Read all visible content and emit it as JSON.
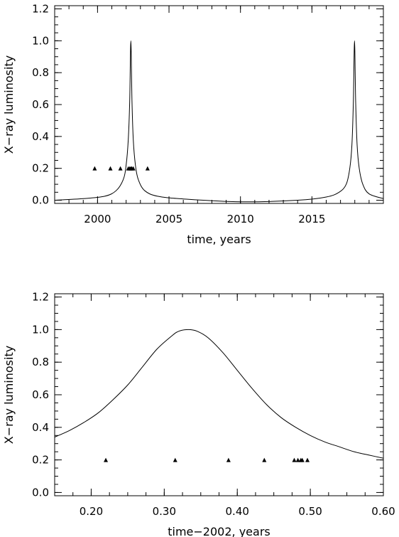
{
  "chart_data": [
    {
      "type": "line",
      "xlabel": "time, years",
      "ylabel": "X−ray luminosity",
      "xlim": [
        1997,
        2020
      ],
      "ylim": [
        -0.02,
        1.22
      ],
      "xticks": [
        2000,
        2005,
        2010,
        2015
      ],
      "xtick_labels": [
        "2000",
        "2005",
        "2010",
        "2015"
      ],
      "xtick_minor_step": 1,
      "yticks": [
        0.0,
        0.2,
        0.4,
        0.6,
        0.8,
        1.0,
        1.2
      ],
      "ytick_labels": [
        "0.0",
        "0.2",
        "0.4",
        "0.6",
        "0.8",
        "1.0",
        "1.2"
      ],
      "ytick_minor_step": 0.05,
      "grid": false,
      "series": [
        {
          "kind": "line",
          "x": [
            1997.0,
            1999.0,
            2000.5,
            2001.3,
            2001.8,
            2002.0,
            2002.15,
            2002.25,
            2002.33,
            2002.41,
            2002.5,
            2002.65,
            2002.85,
            2003.3,
            2004.2,
            2006.0,
            2010.0,
            2014.0,
            2016.0,
            2016.9,
            2017.4,
            2017.65,
            2017.8,
            2017.9,
            2017.98,
            2018.06,
            2018.16,
            2018.31,
            2018.56,
            2019.0,
            2020.0
          ],
          "y": [
            0.0,
            0.01,
            0.025,
            0.06,
            0.13,
            0.22,
            0.38,
            0.62,
            1.0,
            0.62,
            0.38,
            0.22,
            0.13,
            0.06,
            0.025,
            0.008,
            -0.01,
            0.0,
            0.02,
            0.05,
            0.1,
            0.2,
            0.35,
            0.62,
            1.0,
            0.62,
            0.35,
            0.2,
            0.1,
            0.04,
            0.01
          ]
        },
        {
          "kind": "markers",
          "x": [
            1999.8,
            2000.9,
            2001.6,
            2002.15,
            2002.25,
            2002.33,
            2002.4,
            2002.5,
            2003.5
          ],
          "y": [
            0.2,
            0.2,
            0.2,
            0.2,
            0.2,
            0.2,
            0.2,
            0.2,
            0.2
          ]
        }
      ]
    },
    {
      "type": "line",
      "xlabel": "time−2002, years",
      "ylabel": "X−ray luminosity",
      "xlim": [
        0.15,
        0.6
      ],
      "ylim": [
        -0.02,
        1.22
      ],
      "xticks": [
        0.2,
        0.3,
        0.4,
        0.5,
        0.6
      ],
      "xtick_labels": [
        "0.20",
        "0.30",
        "0.40",
        "0.50",
        "0.60"
      ],
      "xtick_minor_step": 0.025,
      "yticks": [
        0.0,
        0.2,
        0.4,
        0.6,
        0.8,
        1.0,
        1.2
      ],
      "ytick_labels": [
        "0.0",
        "0.2",
        "0.4",
        "0.6",
        "0.8",
        "1.0",
        "1.2"
      ],
      "ytick_minor_step": 0.05,
      "grid": false,
      "series": [
        {
          "kind": "line",
          "x": [
            0.15,
            0.17,
            0.19,
            0.21,
            0.23,
            0.25,
            0.27,
            0.29,
            0.31,
            0.32,
            0.333,
            0.345,
            0.36,
            0.38,
            0.4,
            0.42,
            0.44,
            0.46,
            0.48,
            0.5,
            0.52,
            0.54,
            0.56,
            0.58,
            0.6
          ],
          "y": [
            0.34,
            0.38,
            0.43,
            0.49,
            0.57,
            0.66,
            0.77,
            0.88,
            0.96,
            0.99,
            1.0,
            0.99,
            0.95,
            0.86,
            0.75,
            0.64,
            0.54,
            0.46,
            0.4,
            0.35,
            0.31,
            0.28,
            0.25,
            0.23,
            0.21
          ]
        },
        {
          "kind": "markers",
          "x": [
            0.22,
            0.315,
            0.388,
            0.437,
            0.478,
            0.483,
            0.487,
            0.489,
            0.496
          ],
          "y": [
            0.2,
            0.2,
            0.2,
            0.2,
            0.2,
            0.2,
            0.2,
            0.2,
            0.2
          ]
        }
      ]
    }
  ]
}
